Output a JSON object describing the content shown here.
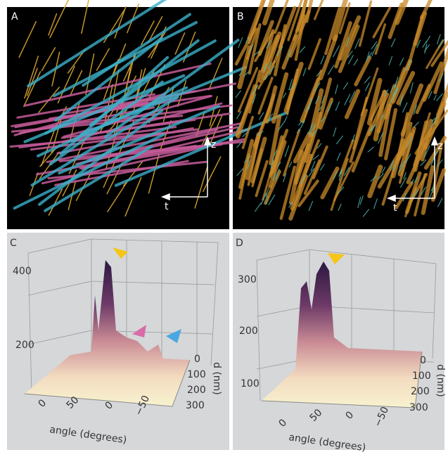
{
  "panels": [
    {
      "label": "A",
      "axis_up": "z",
      "axis_left": "t"
    },
    {
      "label": "B",
      "axis_up": "z",
      "axis_left": "t"
    },
    {
      "label": "C",
      "z_ticks": [
        "400",
        "200"
      ],
      "d_ticks": [
        "0",
        "100",
        "200",
        "300"
      ],
      "angle_ticks": [
        "0",
        "50",
        "0",
        "−50"
      ],
      "x_label": "angle (degrees)",
      "y_label": "d (nm)"
    },
    {
      "label": "D",
      "z_ticks": [
        "300",
        "200",
        "100"
      ],
      "d_ticks": [
        "0",
        "100",
        "200",
        "300"
      ],
      "angle_ticks": [
        "0",
        "50",
        "0",
        "−50"
      ],
      "x_label": "angle (degrees)",
      "y_label": "d (nm)"
    }
  ]
}
